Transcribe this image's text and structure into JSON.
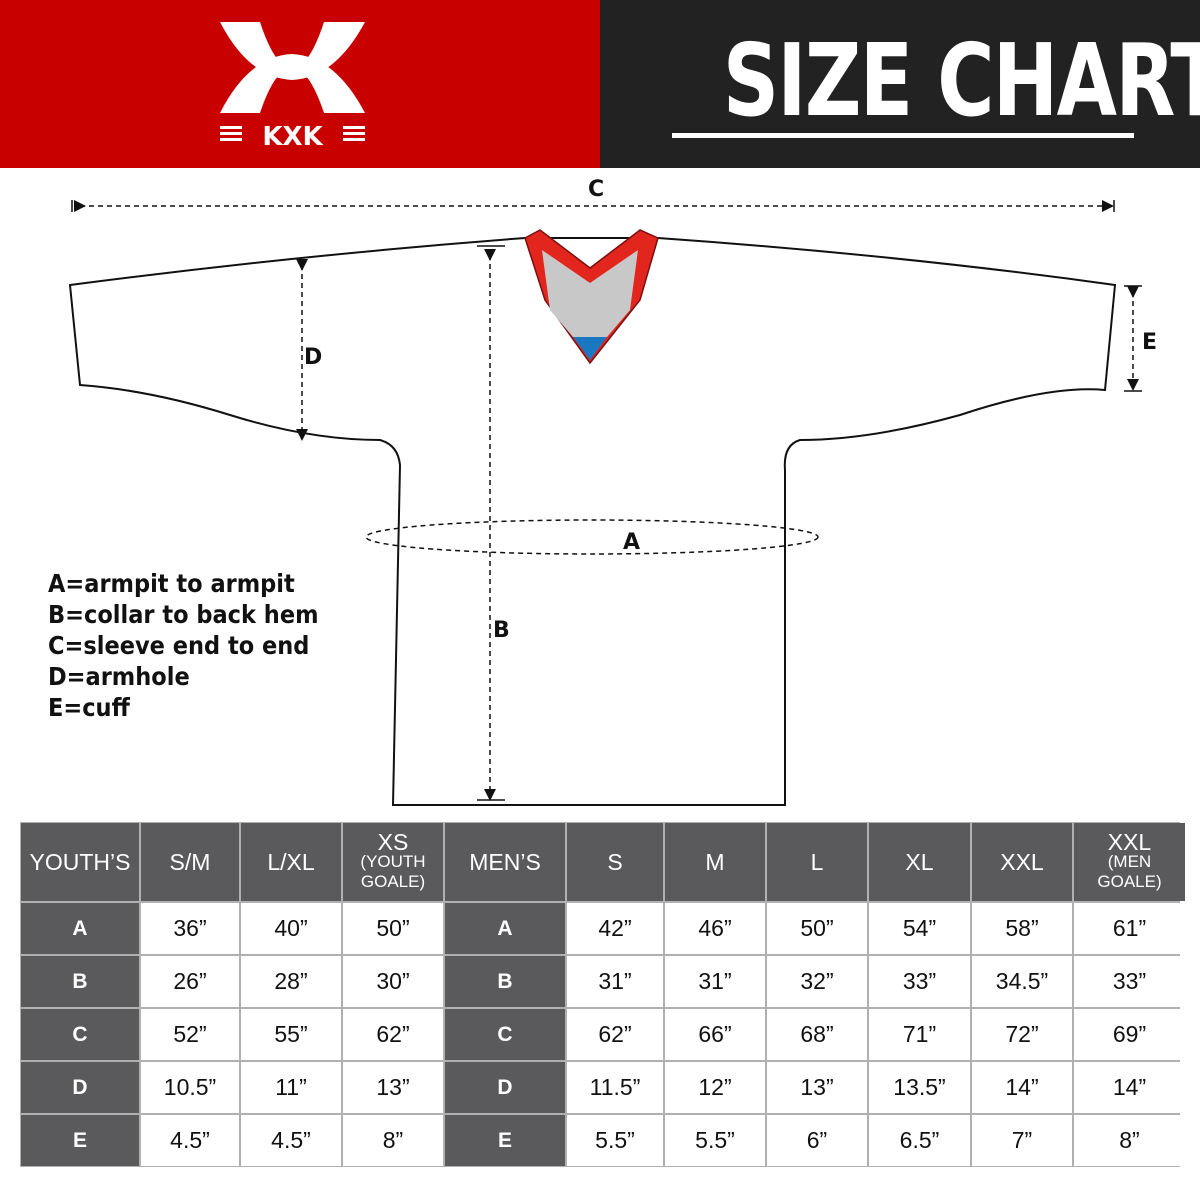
{
  "header": {
    "brand": "KXK",
    "title": "SIZE CHART",
    "brand_color": "#c80000"
  },
  "diagram": {
    "labels": {
      "a": "A",
      "b": "B",
      "c": "C",
      "d": "D",
      "e": "E"
    }
  },
  "legend": [
    "A=armpit to armpit",
    "B=collar to back hem",
    "C=sleeve end to end",
    "D=armhole",
    "E=cuff"
  ],
  "table": {
    "youth_header": "YOUTH’S",
    "youth_sizes": [
      {
        "main": "S/M"
      },
      {
        "main": "L/XL"
      },
      {
        "main": "XS",
        "sub": "(YOUTH GOALE)"
      }
    ],
    "men_header": "MEN’S",
    "men_sizes": [
      {
        "main": "S"
      },
      {
        "main": "M"
      },
      {
        "main": "L"
      },
      {
        "main": "XL"
      },
      {
        "main": "XXL"
      },
      {
        "main": "XXL",
        "sub": "(MEN GOALE)"
      }
    ],
    "rows": [
      {
        "label": "A",
        "youth": [
          "36”",
          "40”",
          "50”"
        ],
        "men": [
          "42”",
          "46”",
          "50”",
          "54”",
          "58”",
          "61”"
        ]
      },
      {
        "label": "B",
        "youth": [
          "26”",
          "28”",
          "30”"
        ],
        "men": [
          "31”",
          "31”",
          "32”",
          "33”",
          "34.5”",
          "33”"
        ]
      },
      {
        "label": "C",
        "youth": [
          "52”",
          "55”",
          "62”"
        ],
        "men": [
          "62”",
          "66”",
          "68”",
          "71”",
          "72”",
          "69”"
        ]
      },
      {
        "label": "D",
        "youth": [
          "10.5”",
          "11”",
          "13”"
        ],
        "men": [
          "11.5”",
          "12”",
          "13”",
          "13.5”",
          "14”",
          "14”"
        ]
      },
      {
        "label": "E",
        "youth": [
          "4.5”",
          "4.5”",
          "8”"
        ],
        "men": [
          "5.5”",
          "5.5”",
          "6”",
          "6.5”",
          "7”",
          "8”"
        ]
      }
    ]
  }
}
